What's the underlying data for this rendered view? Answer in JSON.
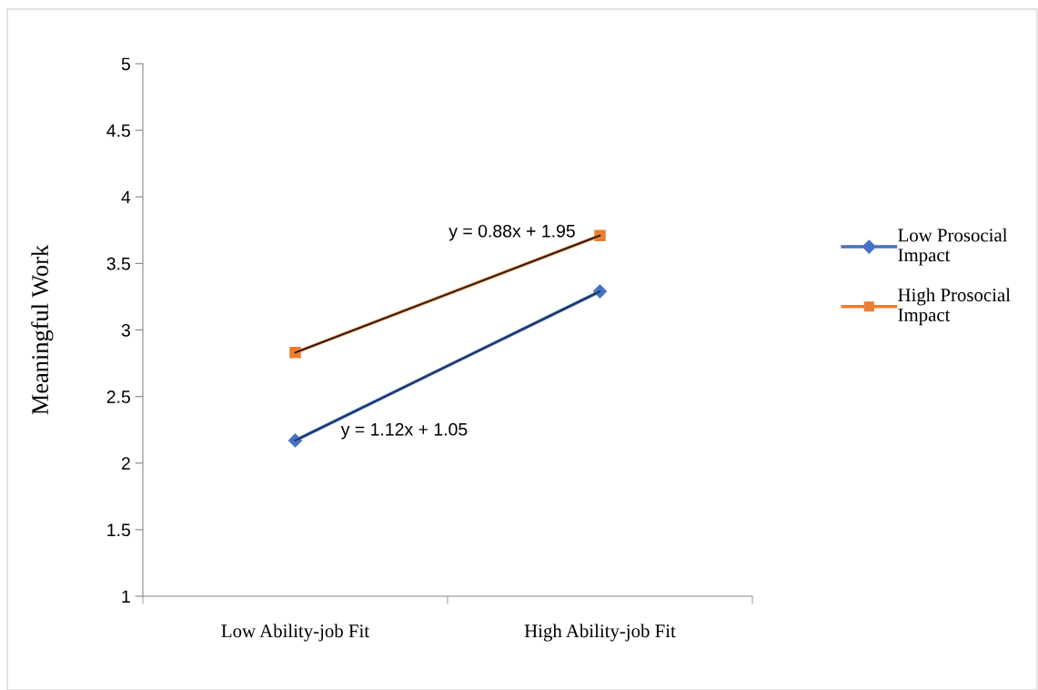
{
  "chart_data": {
    "type": "line",
    "ylabel": "Meaningful Work",
    "categories": [
      "Low Ability-job Fit",
      "High Ability-job Fit"
    ],
    "series": [
      {
        "name": "Low Prosocial Impact",
        "color": "#4472c4",
        "values": [
          2.17,
          3.29
        ],
        "marker": "diamond"
      },
      {
        "name": "High Prosocial Impact",
        "color": "#ed7d31",
        "values": [
          2.83,
          3.71
        ],
        "marker": "square"
      },
      {
        "type": "line",
        "color": "#1f2a4a",
        "values": [
          2.17,
          3.29
        ],
        "marker": "none"
      },
      {
        "type": "line",
        "color": "#1a1a1a",
        "values": [
          2.83,
          3.71
        ],
        "marker": "none"
      }
    ],
    "annotations": [
      "y = 1.12x + 1.05",
      "y = 0.88x + 1.95"
    ],
    "ylim": [
      1,
      5
    ],
    "yticks": [
      1,
      1.5,
      2,
      2.5,
      3,
      3.5,
      4,
      4.5,
      5
    ],
    "grid": false,
    "legend": "right",
    "line_style": "solid"
  }
}
